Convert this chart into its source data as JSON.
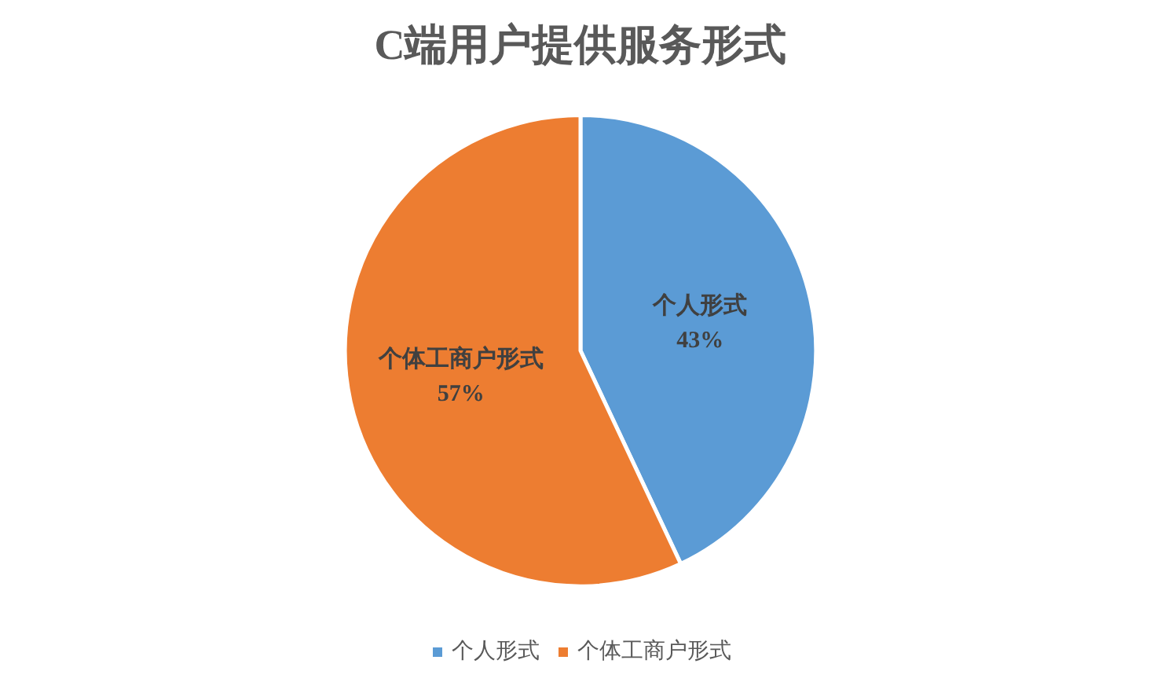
{
  "chart_data": {
    "type": "pie",
    "title": "C端用户提供服务形式",
    "categories": [
      "个人形式",
      "个体工商户形式"
    ],
    "values": [
      43,
      57
    ],
    "colors": [
      "#5b9bd5",
      "#ed7d31"
    ],
    "value_labels": [
      "43%",
      "57%"
    ],
    "legend": "bottom"
  }
}
